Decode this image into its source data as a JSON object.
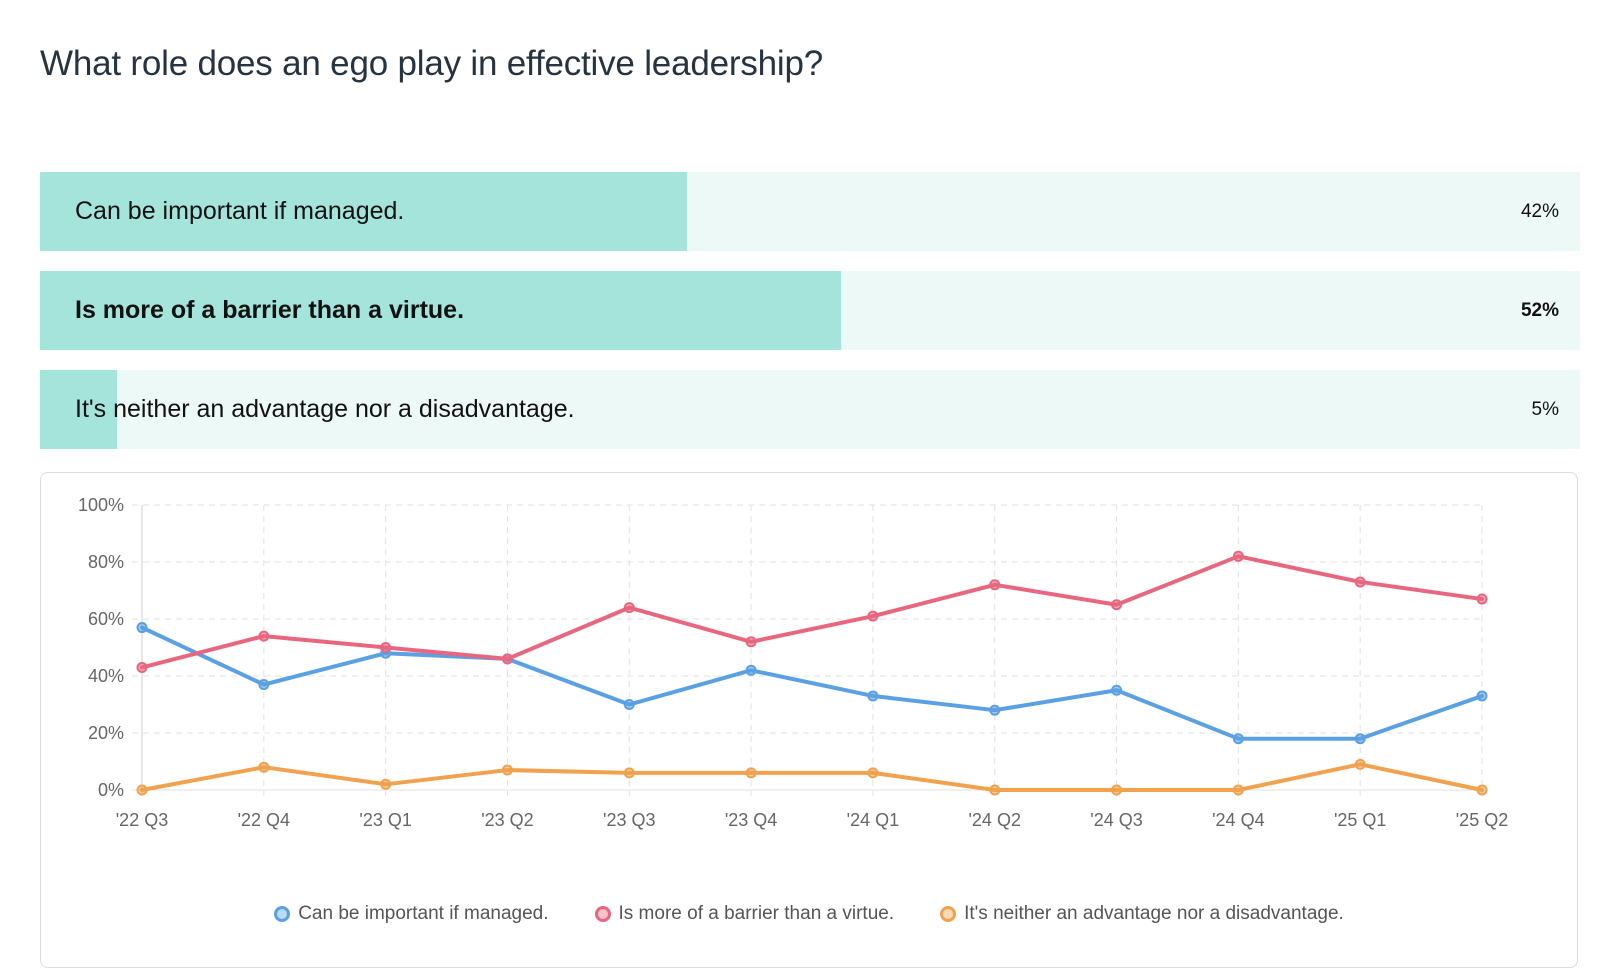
{
  "question": "What role does an ego play in effective leadership?",
  "options": [
    {
      "label": "Can be important if managed.",
      "percent_text": "42%",
      "percent": 42,
      "winner": false
    },
    {
      "label": "Is more of a barrier than a virtue.",
      "percent_text": "52%",
      "percent": 52,
      "winner": true
    },
    {
      "label": "It's neither an advantage nor a disadvantage.",
      "percent_text": "5%",
      "percent": 5,
      "winner": false
    }
  ],
  "chart_data": {
    "type": "line",
    "x": [
      "'22 Q3",
      "'22 Q4",
      "'23 Q1",
      "'23 Q2",
      "'23 Q3",
      "'23 Q4",
      "'24 Q1",
      "'24 Q2",
      "'24 Q3",
      "'24 Q4",
      "'25 Q1",
      "'25 Q2"
    ],
    "ylim": [
      0,
      100
    ],
    "yticks": [
      "0%",
      "20%",
      "40%",
      "60%",
      "80%",
      "100%"
    ],
    "grid": true,
    "legend_position": "bottom",
    "series": [
      {
        "name": "Can be important if managed.",
        "color": "#5aa0e2",
        "values": [
          57,
          37,
          48,
          46,
          30,
          42,
          33,
          28,
          35,
          18,
          18,
          33
        ]
      },
      {
        "name": "Is more of a barrier than a virtue.",
        "color": "#e8677f",
        "values": [
          43,
          54,
          50,
          46,
          64,
          52,
          61,
          72,
          65,
          82,
          73,
          67
        ]
      },
      {
        "name": "It's neither an advantage nor a disadvantage.",
        "color": "#f0a24e",
        "values": [
          0,
          8,
          2,
          7,
          6,
          6,
          6,
          0,
          0,
          0,
          9,
          0
        ]
      }
    ]
  },
  "colors": {
    "bar_fill": "#a4e4db",
    "bar_track": "#ecf9f6"
  }
}
